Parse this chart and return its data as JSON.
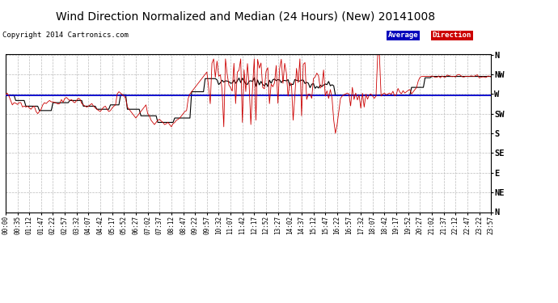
{
  "title": "Wind Direction Normalized and Median (24 Hours) (New) 20141008",
  "copyright": "Copyright 2014 Cartronics.com",
  "background_color": "#ffffff",
  "plot_bg_color": "#ffffff",
  "ytick_labels": [
    "N",
    "NW",
    "W",
    "SW",
    "S",
    "SE",
    "E",
    "NE",
    "N"
  ],
  "ytick_values": [
    0,
    45,
    90,
    135,
    180,
    225,
    270,
    315,
    360
  ],
  "ylim": [
    0,
    360
  ],
  "grid_color": "#bbbbbb",
  "avg_direction_value": 93,
  "legend_avg_color": "#0000bb",
  "legend_dir_color": "#cc0000",
  "legend_text_color": "#ffffff",
  "red_line_color": "#cc0000",
  "blue_line_color": "#0000cc",
  "black_line_color": "#000000",
  "title_fontsize": 10,
  "copyright_fontsize": 6.5,
  "xtick_fontsize": 5.5,
  "ytick_fontsize": 7.5,
  "xtick_labels": [
    "00:00",
    "00:35",
    "01:12",
    "01:47",
    "02:22",
    "02:57",
    "03:32",
    "04:07",
    "04:42",
    "05:17",
    "05:52",
    "06:27",
    "07:02",
    "07:37",
    "08:12",
    "08:47",
    "09:22",
    "09:57",
    "10:32",
    "11:07",
    "11:42",
    "12:17",
    "12:52",
    "13:27",
    "14:02",
    "14:37",
    "15:12",
    "15:47",
    "16:22",
    "16:57",
    "17:32",
    "18:07",
    "18:42",
    "19:17",
    "19:52",
    "20:27",
    "21:02",
    "21:37",
    "22:12",
    "22:47",
    "23:22",
    "23:57"
  ]
}
